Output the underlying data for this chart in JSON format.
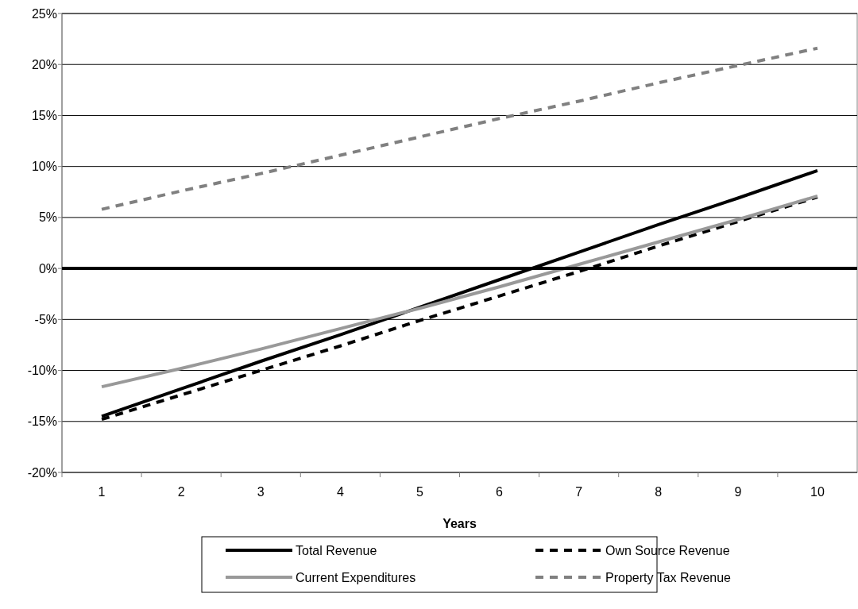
{
  "chart_data": {
    "type": "line",
    "xlabel": "Years",
    "categories": [
      "1",
      "2",
      "3",
      "4",
      "5",
      "6",
      "7",
      "8",
      "9",
      "10"
    ],
    "ylim": [
      -20,
      25
    ],
    "yticks": [
      {
        "value": -20,
        "label": "-20%"
      },
      {
        "value": -15,
        "label": "-15%"
      },
      {
        "value": -10,
        "label": "-10%"
      },
      {
        "value": -5,
        "label": "-5%"
      },
      {
        "value": 0,
        "label": "0%"
      },
      {
        "value": 5,
        "label": "5%"
      },
      {
        "value": 10,
        "label": "10%"
      },
      {
        "value": 15,
        "label": "15%"
      },
      {
        "value": 20,
        "label": "20%"
      },
      {
        "value": 25,
        "label": "25%"
      }
    ],
    "grid": "y",
    "legend": "bottom",
    "series": [
      {
        "name": "Total Revenue",
        "color": "#000000",
        "line_style": "solid",
        "values": [
          -14.5,
          -11.8,
          -9.1,
          -6.5,
          -3.8,
          -1.1,
          1.6,
          4.3,
          6.9,
          9.6
        ]
      },
      {
        "name": "Own Source Revenue",
        "color": "#000000",
        "line_style": "dashed",
        "values": [
          -14.8,
          -12.4,
          -10.0,
          -7.6,
          -5.1,
          -2.7,
          -0.3,
          2.2,
          4.6,
          7.0
        ]
      },
      {
        "name": "Current Expenditures",
        "color": "#999999",
        "line_style": "solid",
        "values": [
          -11.6,
          -9.8,
          -7.9,
          -5.9,
          -3.9,
          -1.8,
          0.4,
          2.6,
          4.8,
          7.1
        ]
      },
      {
        "name": "Property Tax Revenue",
        "color": "#808080",
        "line_style": "dashed",
        "values": [
          5.8,
          7.6,
          9.3,
          11.1,
          12.9,
          14.7,
          16.4,
          18.2,
          19.9,
          21.6
        ]
      }
    ]
  }
}
